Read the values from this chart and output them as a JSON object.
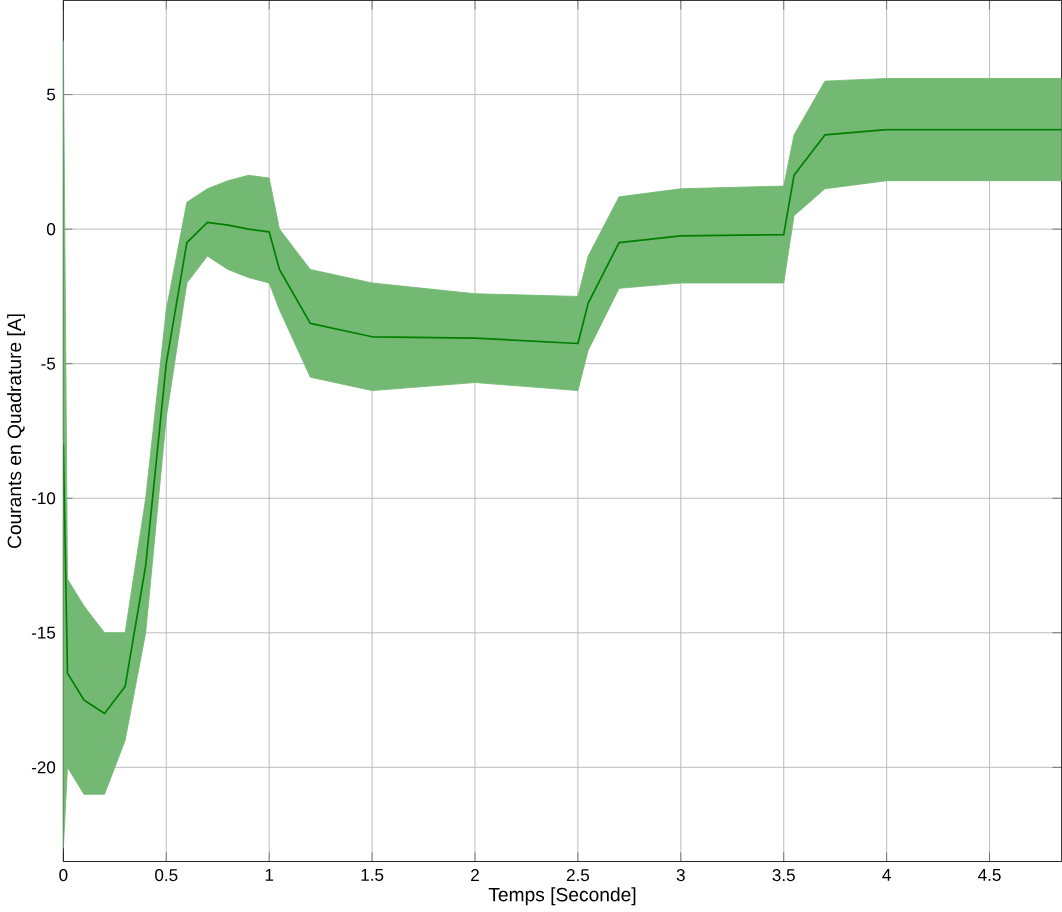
{
  "chart_data": {
    "type": "line",
    "xlabel": "Temps [Seconde]",
    "ylabel": "Courants en Quadrature [A]",
    "xlim": [
      0,
      4.85
    ],
    "ylim": [
      -23.5,
      8.5
    ],
    "xticks": [
      0,
      0.5,
      1,
      1.5,
      2,
      2.5,
      3,
      3.5,
      4,
      4.5
    ],
    "yticks": [
      -20,
      -15,
      -10,
      -5,
      0,
      5
    ],
    "grid": true,
    "series": [
      {
        "color": "#008000",
        "x": [
          0,
          0.02,
          0.1,
          0.2,
          0.3,
          0.4,
          0.5,
          0.6,
          0.7,
          0.8,
          0.9,
          1.0,
          1.05,
          1.2,
          1.5,
          2.0,
          2.5,
          2.55,
          2.7,
          3.0,
          3.5,
          3.55,
          3.7,
          4.0,
          4.5,
          4.85
        ],
        "values": [
          -8,
          -16.5,
          -17.5,
          -18,
          -17,
          -12.5,
          -5,
          -0.5,
          0.25,
          0.15,
          0,
          -0.1,
          -1.5,
          -3.5,
          -4,
          -4.05,
          -4.25,
          -2.75,
          -0.5,
          -0.25,
          -0.2,
          2,
          3.5,
          3.7,
          3.7,
          3.7
        ],
        "lower": [
          -23,
          -20,
          -21,
          -21,
          -19,
          -15,
          -7,
          -2,
          -1,
          -1.5,
          -1.8,
          -2,
          -3,
          -5.5,
          -6,
          -5.7,
          -6,
          -4.5,
          -2.2,
          -2,
          -2,
          0.5,
          1.5,
          1.8,
          1.8,
          1.8
        ],
        "upper": [
          7,
          -13,
          -14,
          -15,
          -15,
          -10,
          -3,
          1,
          1.5,
          1.8,
          2.0,
          1.9,
          0,
          -1.5,
          -2,
          -2.4,
          -2.5,
          -1,
          1.2,
          1.5,
          1.6,
          3.5,
          5.5,
          5.6,
          5.6,
          5.6
        ]
      }
    ]
  }
}
